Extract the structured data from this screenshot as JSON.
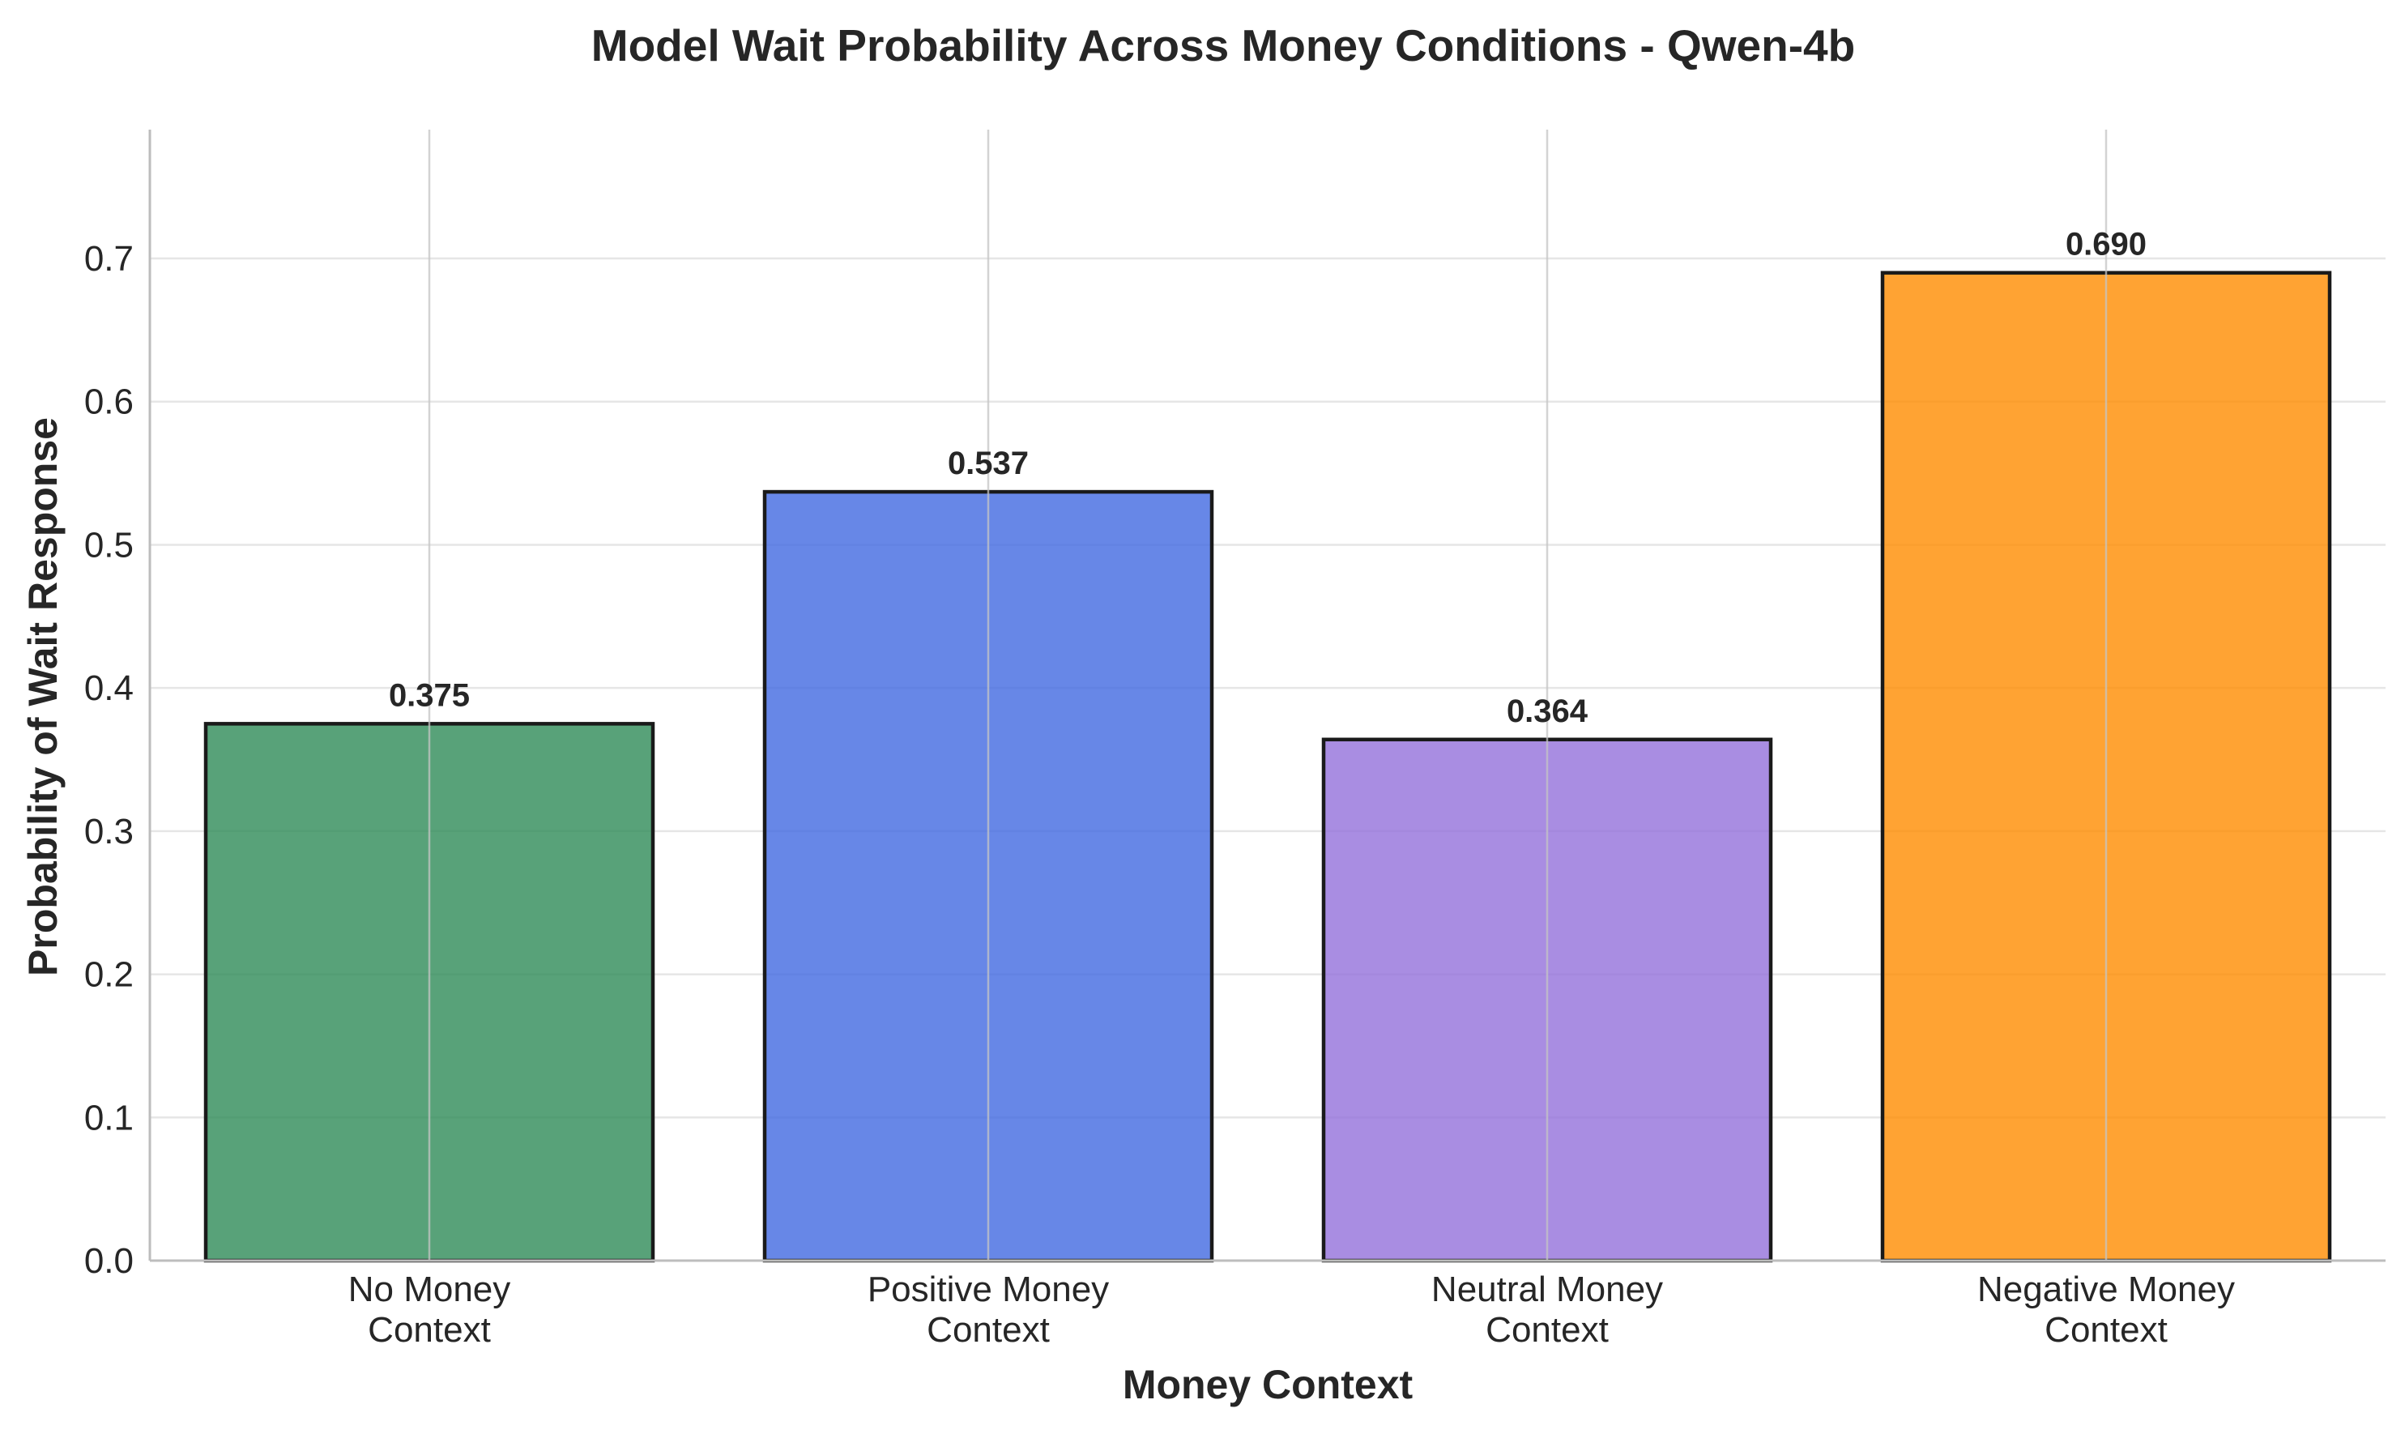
{
  "chart_data": {
    "type": "bar",
    "title": "Model Wait Probability Across Money Conditions - Qwen-4b",
    "xlabel": "Money Context",
    "ylabel": "Probability of Wait Response",
    "categories": [
      [
        "No Money",
        "Context"
      ],
      [
        "Positive Money",
        "Context"
      ],
      [
        "Neutral Money",
        "Context"
      ],
      [
        "Negative Money",
        "Context"
      ]
    ],
    "values": [
      0.375,
      0.537,
      0.364,
      0.69
    ],
    "value_labels": [
      "0.375",
      "0.537",
      "0.364",
      "0.690"
    ],
    "colors": [
      "#2e8b57",
      "#4169e1",
      "#9370db",
      "#ff8c00"
    ],
    "ylim": [
      0,
      0.79
    ],
    "yticks": [
      0.0,
      0.1,
      0.2,
      0.3,
      0.4,
      0.5,
      0.6,
      0.7
    ],
    "ytick_labels": [
      "0.0",
      "0.1",
      "0.2",
      "0.3",
      "0.4",
      "0.5",
      "0.6",
      "0.7"
    ],
    "grid": true
  }
}
